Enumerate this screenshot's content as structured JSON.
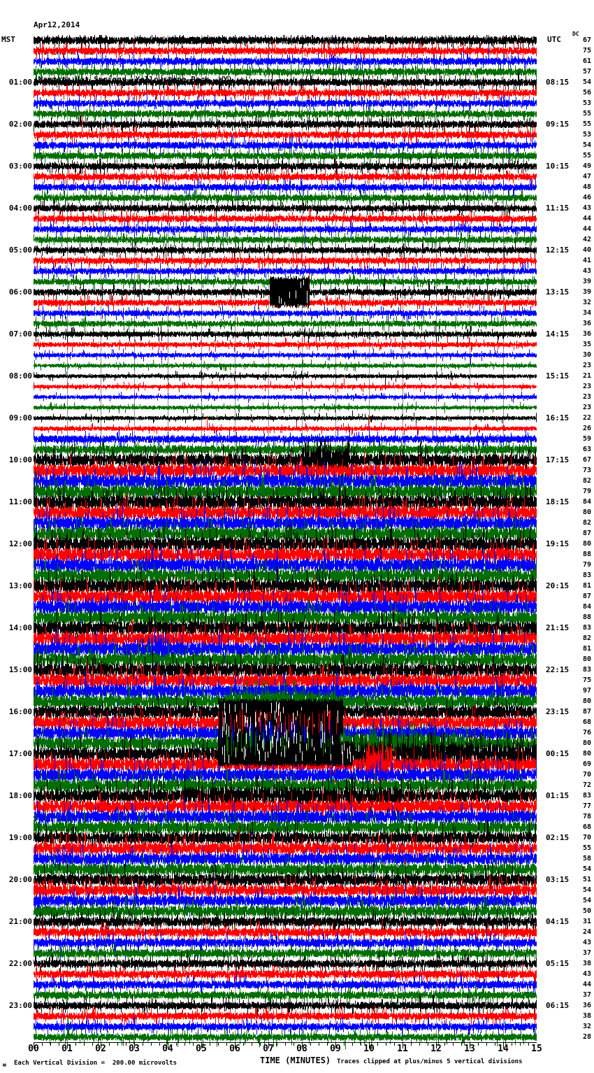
{
  "header": {
    "date": "Apr12,2014",
    "station": "YMV EHZ WY 01",
    "location": "(Mammoth Hot Springs, Yellowstone Park, WY)"
  },
  "scales": {
    "left": "MST",
    "right": "UTC",
    "dc": "DC"
  },
  "footer": {
    "mark": "м",
    "division_note": "Each Vertical Division =  200.00 microvolts",
    "axis_title": "TIME (MINUTES)",
    "clip_note": "Traces clipped at plus/minus 5 vertical divisions"
  },
  "axis": {
    "ticks": [
      "00",
      "01",
      "02",
      "03",
      "04",
      "05",
      "06",
      "07",
      "08",
      "09",
      "10",
      "11",
      "12",
      "13",
      "14",
      "15"
    ]
  },
  "colors": {
    "traces": [
      "#000000",
      "#ff0000",
      "#0000ff",
      "#006e00"
    ],
    "grid": "#8c8c8c",
    "background": "#ffffff",
    "text": "#000000"
  },
  "chart_data": {
    "type": "line",
    "title": "YMV EHZ WY 01 (Mammoth Hot Springs, Yellowstone Park, WY) Apr12,2014",
    "xlabel": "TIME (MINUTES)",
    "x_range": [
      0,
      15
    ],
    "minutes_per_line": 15,
    "lines_per_hour": 4,
    "timezone_left": "MST",
    "timezone_right": "UTC",
    "division_microvolts": "200.00",
    "clip_divisions": 5,
    "grid": true,
    "color_cycle": [
      "black",
      "red",
      "blue",
      "green"
    ],
    "rows": [
      {
        "dc": 67,
        "amp": 0.55
      },
      {
        "dc": 75,
        "amp": 0.5
      },
      {
        "dc": 61,
        "amp": 0.5
      },
      {
        "dc": 57,
        "amp": 0.5
      },
      {
        "mst": "01:00",
        "utc": "08:15",
        "dc": 54,
        "amp": 0.5
      },
      {
        "dc": 56,
        "amp": 0.5
      },
      {
        "dc": 53,
        "amp": 0.48
      },
      {
        "dc": 55,
        "amp": 0.48
      },
      {
        "mst": "02:00",
        "utc": "09:15",
        "dc": 55,
        "amp": 0.5
      },
      {
        "dc": 53,
        "amp": 0.48
      },
      {
        "dc": 54,
        "amp": 0.48
      },
      {
        "dc": 55,
        "amp": 0.48
      },
      {
        "mst": "03:00",
        "utc": "10:15",
        "dc": 49,
        "amp": 0.48
      },
      {
        "dc": 47,
        "amp": 0.47
      },
      {
        "dc": 48,
        "amp": 0.46
      },
      {
        "dc": 46,
        "amp": 0.46
      },
      {
        "mst": "04:00",
        "utc": "11:15",
        "dc": 43,
        "amp": 0.46
      },
      {
        "dc": 44,
        "amp": 0.46
      },
      {
        "dc": 44,
        "amp": 0.45
      },
      {
        "dc": 42,
        "amp": 0.45
      },
      {
        "mst": "05:00",
        "utc": "12:15",
        "dc": 40,
        "amp": 0.44
      },
      {
        "dc": 41,
        "amp": 0.44
      },
      {
        "dc": 43,
        "amp": 0.43
      },
      {
        "dc": 39,
        "amp": 0.42
      },
      {
        "mst": "06:00",
        "utc": "13:15",
        "dc": 39,
        "amp": 0.46,
        "events": [
          {
            "s": 7.05,
            "e": 8.2,
            "sat": true,
            "clip": 22
          }
        ]
      },
      {
        "dc": 32,
        "amp": 0.42
      },
      {
        "dc": 34,
        "amp": 0.4
      },
      {
        "dc": 36,
        "amp": 0.4
      },
      {
        "mst": "07:00",
        "utc": "14:15",
        "dc": 36,
        "amp": 0.38
      },
      {
        "dc": 35,
        "amp": 0.34
      },
      {
        "dc": 30,
        "amp": 0.3
      },
      {
        "dc": 23,
        "amp": 0.27
      },
      {
        "mst": "08:00",
        "utc": "15:15",
        "dc": 21,
        "amp": 0.26
      },
      {
        "dc": 23,
        "amp": 0.26
      },
      {
        "dc": 23,
        "amp": 0.26
      },
      {
        "dc": 23,
        "amp": 0.26
      },
      {
        "mst": "09:00",
        "utc": "16:15",
        "dc": 22,
        "amp": 0.27
      },
      {
        "dc": 26,
        "amp": 0.3
      },
      {
        "dc": 59,
        "amp": 0.5
      },
      {
        "dc": 63,
        "amp": 0.6
      },
      {
        "mst": "10:00",
        "utc": "17:15",
        "dc": 67,
        "amp": 0.85,
        "events": [
          {
            "s": 8.0,
            "e": 9.4,
            "a": 2.0
          }
        ]
      },
      {
        "dc": 73,
        "amp": 0.9
      },
      {
        "dc": 82,
        "amp": 0.92
      },
      {
        "dc": 79,
        "amp": 0.92
      },
      {
        "mst": "11:00",
        "utc": "18:15",
        "dc": 84,
        "amp": 0.92
      },
      {
        "dc": 80,
        "amp": 0.9
      },
      {
        "dc": 82,
        "amp": 0.9
      },
      {
        "dc": 87,
        "amp": 0.92
      },
      {
        "mst": "12:00",
        "utc": "19:15",
        "dc": 80,
        "amp": 0.92
      },
      {
        "dc": 88,
        "amp": 0.92
      },
      {
        "dc": 79,
        "amp": 0.9
      },
      {
        "dc": 83,
        "amp": 0.9
      },
      {
        "mst": "13:00",
        "utc": "20:15",
        "dc": 81,
        "amp": 0.92
      },
      {
        "dc": 87,
        "amp": 0.92
      },
      {
        "dc": 84,
        "amp": 0.9
      },
      {
        "dc": 88,
        "amp": 0.9
      },
      {
        "mst": "14:00",
        "utc": "21:15",
        "dc": 83,
        "amp": 0.92
      },
      {
        "dc": 82,
        "amp": 0.9
      },
      {
        "dc": 81,
        "amp": 0.9,
        "events": [
          {
            "s": 3.4,
            "e": 4.0,
            "a": 2.0
          }
        ]
      },
      {
        "dc": 80,
        "amp": 0.9
      },
      {
        "mst": "15:00",
        "utc": "22:15",
        "dc": 83,
        "amp": 0.92
      },
      {
        "dc": 75,
        "amp": 0.88
      },
      {
        "dc": 97,
        "amp": 0.9
      },
      {
        "dc": 80,
        "amp": 0.85,
        "events": [
          {
            "s": 5.8,
            "e": 9.0,
            "a": 1.5
          }
        ]
      },
      {
        "mst": "16:00",
        "utc": "23:15",
        "dc": 87,
        "amp": 0.85,
        "events": [
          {
            "s": 5.5,
            "e": 9.2,
            "sat": true,
            "clip": 18
          }
        ]
      },
      {
        "dc": 68,
        "amp": 0.85,
        "events": [
          {
            "s": 5.5,
            "e": 9.2,
            "sat": true,
            "clip": 18,
            "black": true
          }
        ]
      },
      {
        "dc": 76,
        "amp": 0.85,
        "events": [
          {
            "s": 5.5,
            "e": 9.1,
            "sat": true,
            "clip": 18,
            "black": true
          }
        ]
      },
      {
        "dc": 80,
        "amp": 0.85,
        "events": [
          {
            "s": 5.6,
            "e": 9.0,
            "sat": true,
            "clip": 18,
            "black": true
          },
          {
            "s": 9.0,
            "e": 13.0,
            "a": 1.45
          }
        ]
      },
      {
        "mst": "17:00",
        "utc": "00:15",
        "dc": 80,
        "amp": 0.9,
        "events": [
          {
            "s": 5.5,
            "e": 9.5,
            "sat": true,
            "clip": 18
          },
          {
            "s": 9.5,
            "e": 15.0,
            "a": 1.6
          }
        ]
      },
      {
        "dc": 69,
        "amp": 0.9,
        "events": [
          {
            "s": 9.9,
            "e": 10.7,
            "a": 2.5
          }
        ]
      },
      {
        "dc": 70,
        "amp": 0.88
      },
      {
        "dc": 72,
        "amp": 0.85
      },
      {
        "mst": "18:00",
        "utc": "01:15",
        "dc": 83,
        "amp": 0.85,
        "events": [
          {
            "s": 4.5,
            "e": 11.0,
            "a": 1.25
          }
        ]
      },
      {
        "dc": 77,
        "amp": 0.85
      },
      {
        "dc": 78,
        "amp": 0.85
      },
      {
        "dc": 68,
        "amp": 0.82
      },
      {
        "mst": "19:00",
        "utc": "02:15",
        "dc": 70,
        "amp": 0.82
      },
      {
        "dc": 55,
        "amp": 0.8
      },
      {
        "dc": 58,
        "amp": 0.78
      },
      {
        "dc": 54,
        "amp": 0.78
      },
      {
        "mst": "20:00",
        "utc": "03:15",
        "dc": 51,
        "amp": 0.78
      },
      {
        "dc": 54,
        "amp": 0.76
      },
      {
        "dc": 54,
        "amp": 0.75
      },
      {
        "dc": 50,
        "amp": 0.75
      },
      {
        "mst": "21:00",
        "utc": "04:15",
        "dc": 31,
        "amp": 0.65
      },
      {
        "dc": 24,
        "amp": 0.6
      },
      {
        "dc": 43,
        "amp": 0.6
      },
      {
        "dc": 37,
        "amp": 0.58
      },
      {
        "mst": "22:00",
        "utc": "05:15",
        "dc": 38,
        "amp": 0.55
      },
      {
        "dc": 43,
        "amp": 0.55
      },
      {
        "dc": 44,
        "amp": 0.55
      },
      {
        "dc": 37,
        "amp": 0.52
      },
      {
        "mst": "23:00",
        "utc": "06:15",
        "dc": 36,
        "amp": 0.52
      },
      {
        "dc": 38,
        "amp": 0.5
      },
      {
        "dc": 32,
        "amp": 0.5
      },
      {
        "dc": 28,
        "amp": 0.48
      }
    ]
  }
}
